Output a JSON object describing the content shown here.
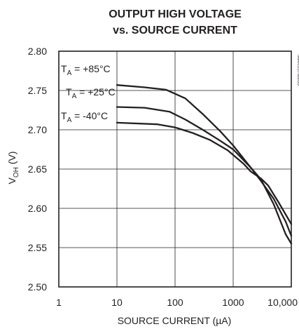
{
  "chart_data": {
    "type": "line",
    "title": "OUTPUT HIGH VOLTAGE",
    "subtitle": "vs. SOURCE CURRENT",
    "xlabel": "SOURCE CURRENT (µA)",
    "ylabel": {
      "main": "V",
      "sub": "OH",
      "unit": " (V)"
    },
    "x_scale": "log",
    "xlim": [
      1,
      10000
    ],
    "ylim": [
      2.5,
      2.8
    ],
    "x_ticks": [
      1,
      10,
      100,
      1000,
      10000
    ],
    "x_tick_labels": [
      "1",
      "10",
      "100",
      "1000",
      "10,000"
    ],
    "y_ticks": [
      2.5,
      2.55,
      2.6,
      2.65,
      2.7,
      2.75,
      2.8
    ],
    "y_tick_labels": [
      "2.50",
      "2.55",
      "2.60",
      "2.65",
      "2.70",
      "2.75",
      "2.80"
    ],
    "grid": true,
    "reference_id": "MAX997toc05",
    "series": [
      {
        "name": {
          "main": "T",
          "sub": "A",
          "rest": " = +85°C"
        },
        "x": [
          10,
          30,
          70,
          150,
          300,
          600,
          1000,
          2000,
          3000,
          5000,
          8000,
          10000
        ],
        "y": [
          2.757,
          2.754,
          2.751,
          2.74,
          2.72,
          2.698,
          2.68,
          2.652,
          2.637,
          2.605,
          2.567,
          2.555
        ]
      },
      {
        "name": {
          "main": "T",
          "sub": "A",
          "rest": " = +25°C"
        },
        "x": [
          10,
          30,
          80,
          150,
          300,
          600,
          1000,
          2000,
          3000,
          5000,
          8000,
          10000
        ],
        "y": [
          2.729,
          2.728,
          2.723,
          2.713,
          2.7,
          2.686,
          2.675,
          2.652,
          2.635,
          2.612,
          2.583,
          2.565
        ]
      },
      {
        "name": {
          "main": "T",
          "sub": "A",
          "rest": " = -40°C"
        },
        "x": [
          10,
          50,
          100,
          200,
          400,
          800,
          1500,
          2000,
          3000,
          4000,
          6000,
          10000
        ],
        "y": [
          2.709,
          2.707,
          2.703,
          2.696,
          2.687,
          2.674,
          2.657,
          2.647,
          2.638,
          2.629,
          2.608,
          2.58
        ]
      }
    ]
  }
}
